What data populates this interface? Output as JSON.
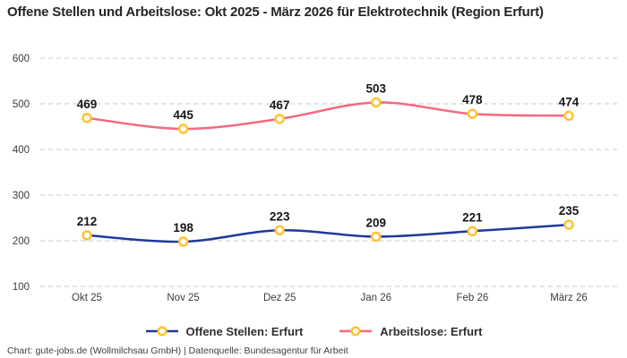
{
  "title": "Offene Stellen und Arbeitslose: Okt 2025 - März 2026 für Elektrotechnik (Region Erfurt)",
  "footer": "Chart: gute-jobs.de (Wollmilchsau GmbH) | Datenquelle: Bundesagentur für Arbeit",
  "colors": {
    "offene_stellen": "#20399b",
    "arbeitslose": "#f5697f",
    "marker_ring": "#ffc331",
    "marker_fill": "#ffffff",
    "grid": "#c9c9c9",
    "axis_text": "#3d3d3d",
    "data_label": "#161616",
    "title_text": "#262626",
    "background": "#ffffff"
  },
  "chart_data": {
    "type": "line",
    "title": "Offene Stellen und Arbeitslose: Okt 2025 - März 2026 für Elektrotechnik (Region Erfurt)",
    "categories": [
      "Okt 25",
      "Nov 25",
      "Dez 25",
      "Jan 26",
      "Feb 26",
      "März 26"
    ],
    "series": [
      {
        "name": "Offene Stellen: Erfurt",
        "color_key": "offene_stellen",
        "values": [
          212,
          198,
          223,
          209,
          221,
          235
        ]
      },
      {
        "name": "Arbeitslose: Erfurt",
        "color_key": "arbeitslose",
        "values": [
          469,
          445,
          467,
          503,
          478,
          474
        ]
      }
    ],
    "xlabel": "",
    "ylabel": "",
    "ylim": [
      100,
      600
    ],
    "yticks": [
      100,
      200,
      300,
      400,
      500,
      600
    ],
    "grid": "horizontal-dashed",
    "legend_position": "bottom",
    "marker": "circle-yellow-ring",
    "smooth": true,
    "data_labels": true
  }
}
